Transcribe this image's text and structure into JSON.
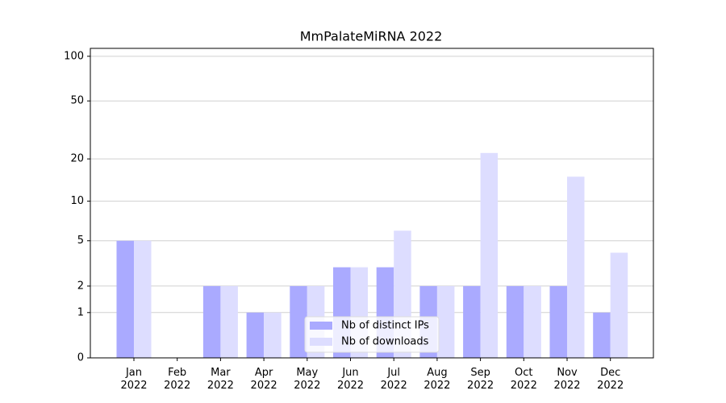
{
  "chart_data": {
    "type": "bar",
    "title": "MmPalateMiRNA 2022",
    "categories": [
      "Jan\n2022",
      "Feb\n2022",
      "Mar\n2022",
      "Apr\n2022",
      "May\n2022",
      "Jun\n2022",
      "Jul\n2022",
      "Aug\n2022",
      "Sep\n2022",
      "Oct\n2022",
      "Nov\n2022",
      "Dec\n2022"
    ],
    "series": [
      {
        "name": "Nb of distinct IPs",
        "color": "#aaaaff",
        "values": [
          5,
          0,
          2,
          1,
          2,
          3,
          3,
          2,
          2,
          2,
          2,
          1
        ]
      },
      {
        "name": "Nb of downloads",
        "color": "#ddddff",
        "values": [
          5,
          0,
          2,
          1,
          2,
          3,
          6,
          2,
          22,
          2,
          15,
          4
        ]
      }
    ],
    "yscale": "log1p",
    "ylim": [
      0,
      113
    ],
    "yticks": [
      0,
      1,
      2,
      5,
      10,
      20,
      50,
      100
    ],
    "grid": true,
    "legend": "lower center"
  }
}
